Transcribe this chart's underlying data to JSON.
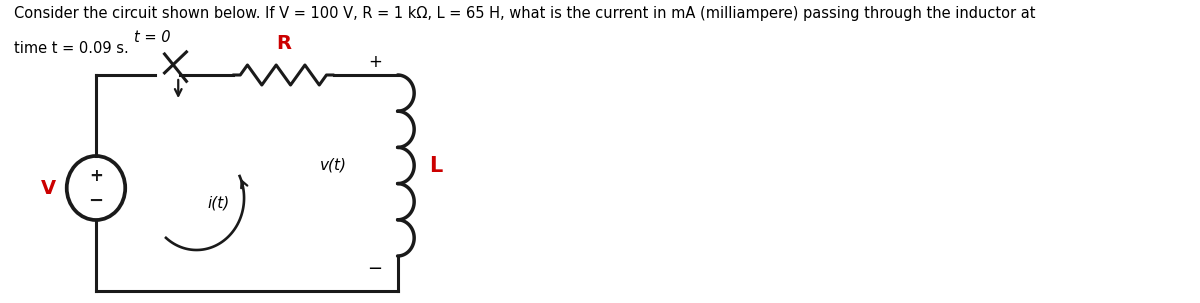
{
  "title_line1": "Consider the circuit shown below. If V = 100 V, R = 1 kΩ, L = 65 H, what is the current in mA (milliampere) passing through the inductor at",
  "title_line2": "time t = 0.09 s.",
  "bg_color": "#ffffff",
  "text_color": "#000000",
  "red_color": "#cc0000",
  "circuit_color": "#1a1a1a",
  "label_t0": "t = 0",
  "label_R": "R",
  "label_V": "V",
  "label_it": "i(t)",
  "label_vt": "v(t)",
  "label_L": "L",
  "label_plus": "+",
  "label_minus": "−",
  "label_plus_V": "+",
  "label_minus_V": "−",
  "font_size_title": 10.5,
  "font_size_labels": 11,
  "font_size_red": 13
}
